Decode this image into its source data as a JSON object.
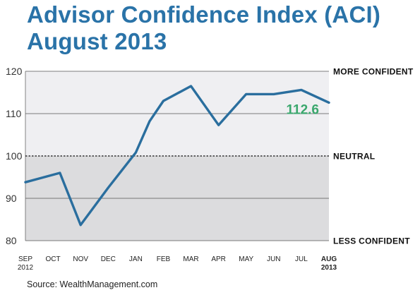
{
  "title_line1": "Advisor Confidence Index (ACI)",
  "title_line2": "August 2013",
  "source": "Source: WealthManagement.com",
  "chart_data": {
    "type": "line",
    "title": "Advisor Confidence Index (ACI) August 2013",
    "categories": [
      "SEP 2012",
      "OCT",
      "NOV",
      "DEC",
      "JAN",
      "FEB",
      "MAR",
      "APR",
      "MAY",
      "JUN",
      "JUL",
      "AUG 2013"
    ],
    "x_tick_labels": [
      [
        "SEP",
        "2012"
      ],
      [
        "OCT"
      ],
      [
        "NOV"
      ],
      [
        "DEC"
      ],
      [
        "JAN"
      ],
      [
        "FEB"
      ],
      [
        "MAR"
      ],
      [
        "APR"
      ],
      [
        "MAY"
      ],
      [
        "JUN"
      ],
      [
        "JUL"
      ],
      [
        "AUG",
        "2013"
      ]
    ],
    "bold_ticks": [
      11
    ],
    "x_points": [
      0,
      1.25,
      2.0,
      3.0,
      4.0,
      4.5,
      5.0,
      6.0,
      7.0,
      8.0,
      9.0,
      10.0,
      11.0
    ],
    "y_points": [
      93.8,
      96.0,
      83.7,
      92.5,
      100.8,
      108.2,
      113.0,
      116.5,
      107.3,
      114.6,
      114.6,
      115.6,
      112.6
    ],
    "ylim": [
      80,
      120
    ],
    "yticks": [
      80,
      90,
      100,
      110,
      120
    ],
    "reference_line": 100,
    "right_labels": [
      {
        "value": 120,
        "text": "MORE CONFIDENT"
      },
      {
        "value": 100,
        "text": "NEUTRAL"
      },
      {
        "value": 80,
        "text": "LESS CONFIDENT"
      }
    ],
    "annotation": {
      "text": "112.6",
      "color": "#3aa76d"
    },
    "line_color": "#2a6e9e",
    "upper_band_color": "#efeff2",
    "lower_band_color": "#dcdcde"
  }
}
